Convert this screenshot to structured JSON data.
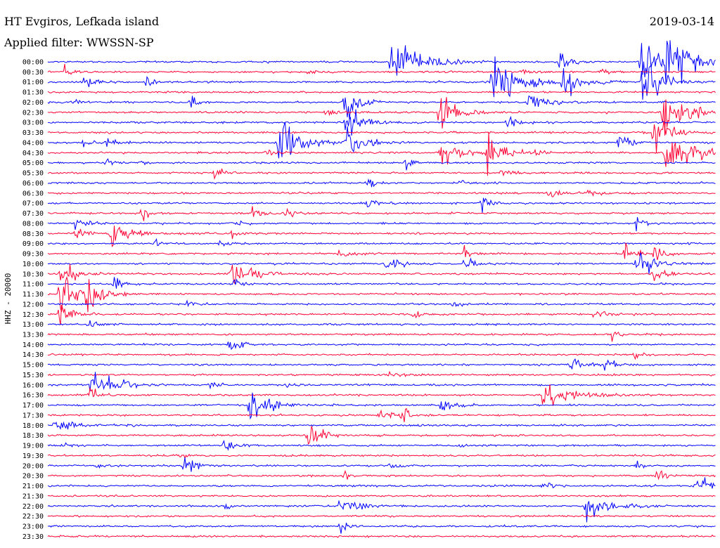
{
  "header": {
    "station": "HT Evgiros, Lefkada island",
    "filter": "Applied filter: WWSSN-SP",
    "date": "2019-03-14"
  },
  "chart_data": {
    "type": "line",
    "title": "HT Evgiros, Lefkada island",
    "subtitle": "Applied filter: WWSSN-SP",
    "date": "2019-03-14",
    "ylabel": "HHZ - 20000",
    "row_labels": [
      "00:00",
      "00:30",
      "01:00",
      "01:30",
      "02:00",
      "02:30",
      "03:00",
      "03:30",
      "04:00",
      "04:30",
      "05:00",
      "05:30",
      "06:00",
      "06:30",
      "07:00",
      "07:30",
      "08:00",
      "08:30",
      "09:00",
      "09:30",
      "10:00",
      "10:30",
      "11:00",
      "11:30",
      "12:00",
      "12:30",
      "13:00",
      "13:30",
      "14:00",
      "14:30",
      "15:00",
      "15:30",
      "16:00",
      "16:30",
      "17:00",
      "17:30",
      "18:00",
      "18:30",
      "19:00",
      "19:30",
      "20:00",
      "20:30",
      "21:00",
      "21:30",
      "22:00",
      "22:30",
      "23:00",
      "23:30"
    ],
    "trace_colors": [
      "#0000ff",
      "#ff0033"
    ],
    "grid": false,
    "legend": "none"
  }
}
